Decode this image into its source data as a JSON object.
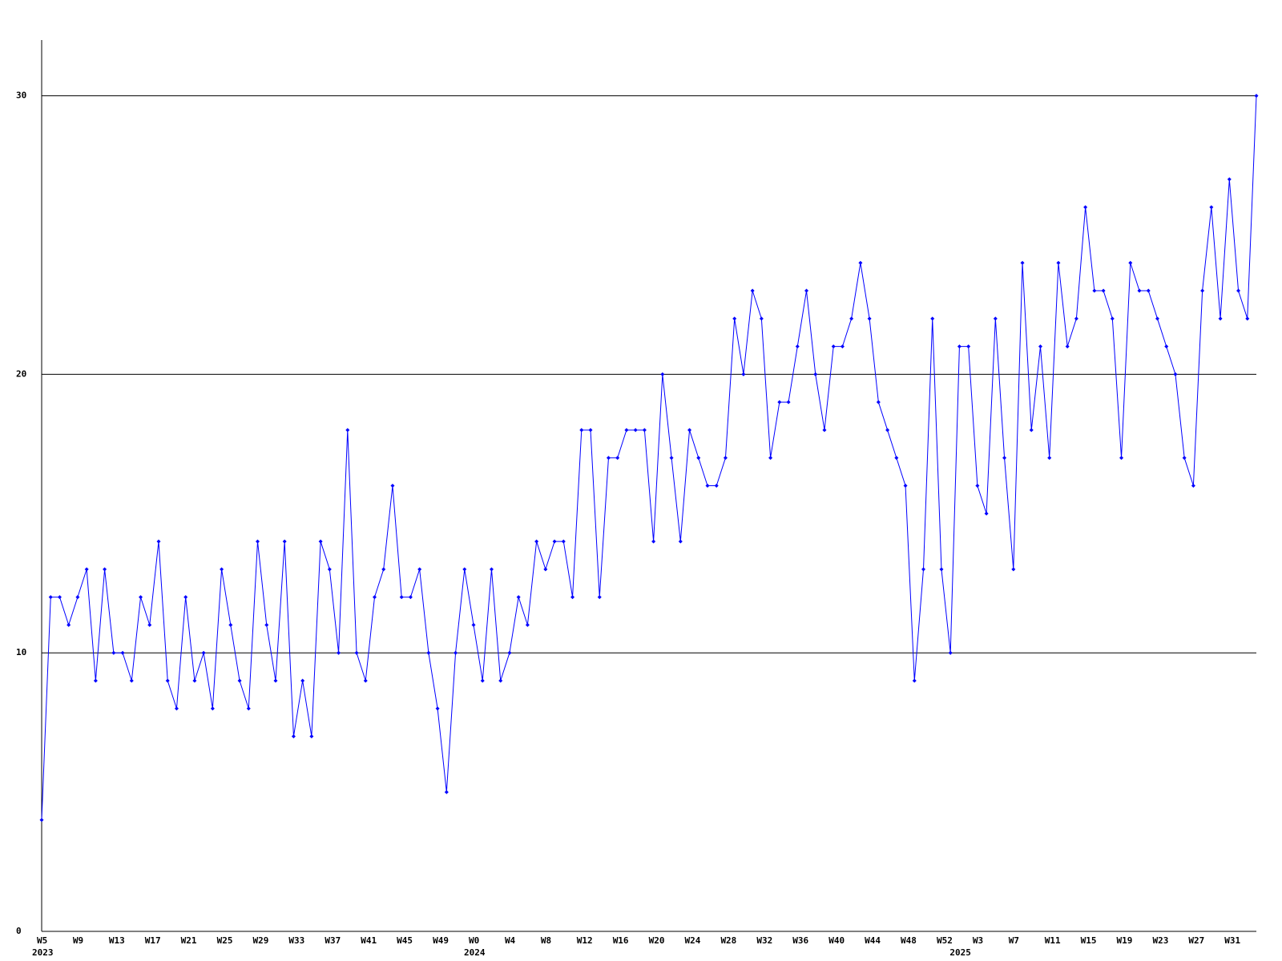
{
  "chart_data": {
    "type": "line",
    "categories": [
      "W5",
      null,
      null,
      null,
      "W9",
      null,
      null,
      null,
      "W13",
      null,
      null,
      null,
      "W17",
      null,
      null,
      null,
      "W21",
      null,
      null,
      null,
      "W25",
      null,
      null,
      null,
      "W29",
      null,
      null,
      null,
      "W33",
      null,
      null,
      null,
      "W37",
      null,
      null,
      null,
      "W41",
      null,
      null,
      null,
      "W45",
      null,
      null,
      null,
      "W49",
      null,
      null,
      null,
      "W0",
      null,
      null,
      null,
      "W4",
      null,
      null,
      null,
      "W8",
      null,
      null,
      null,
      "W12",
      null,
      null,
      null,
      "W16",
      null,
      null,
      null,
      "W20",
      null,
      null,
      null,
      "W24",
      null,
      null,
      null,
      "W28",
      null,
      null,
      null,
      "W32",
      null,
      null,
      null,
      "W36",
      null,
      null,
      null,
      "W40",
      null,
      null,
      null,
      "W44",
      null,
      null,
      null,
      "W48",
      null,
      null,
      null,
      "W52",
      null,
      null,
      null,
      "W3",
      null,
      null,
      null,
      "W7",
      null,
      null,
      null,
      "W11",
      null,
      null,
      null,
      "W15",
      null,
      null,
      null,
      "W19",
      null,
      null,
      null,
      "W23",
      null,
      null,
      null,
      "W27",
      null,
      null,
      null,
      "W31",
      null,
      null,
      null
    ],
    "category_years": [
      "2023",
      null,
      null,
      null,
      null,
      null,
      null,
      null,
      null,
      null,
      null,
      null,
      null,
      null,
      null,
      null,
      null,
      null,
      null,
      null,
      null,
      null,
      null,
      null,
      null,
      null,
      null,
      null,
      null,
      null,
      null,
      null,
      null,
      null,
      null,
      null,
      null,
      null,
      null,
      null,
      null,
      null,
      null,
      null,
      null,
      null,
      null,
      null,
      "2024",
      null,
      null,
      null,
      null,
      null,
      null,
      null,
      null,
      null,
      null,
      null,
      null,
      null,
      null,
      null,
      null,
      null,
      null,
      null,
      null,
      null,
      null,
      null,
      null,
      null,
      null,
      null,
      null,
      null,
      null,
      null,
      null,
      null,
      null,
      null,
      null,
      null,
      null,
      null,
      null,
      null,
      null,
      null,
      null,
      null,
      null,
      null,
      null,
      null,
      null,
      null,
      null,
      null,
      "2025",
      null,
      null,
      null,
      null,
      null,
      null,
      null,
      null,
      null,
      null,
      null,
      null,
      null,
      null,
      null,
      null,
      null,
      null,
      null,
      null,
      null,
      null,
      null,
      null,
      null,
      null,
      null,
      null,
      null,
      null,
      null
    ],
    "values": [
      4,
      12,
      12,
      11,
      12,
      13,
      9,
      13,
      10,
      10,
      9,
      12,
      11,
      14,
      9,
      8,
      12,
      9,
      10,
      8,
      13,
      11,
      9,
      8,
      14,
      11,
      9,
      14,
      7,
      9,
      7,
      14,
      13,
      10,
      18,
      10,
      9,
      12,
      13,
      16,
      12,
      12,
      13,
      10,
      8,
      5,
      10,
      13,
      11,
      9,
      13,
      9,
      10,
      12,
      11,
      14,
      13,
      14,
      14,
      12,
      18,
      18,
      12,
      17,
      17,
      18,
      18,
      18,
      14,
      20,
      17,
      14,
      18,
      17,
      16,
      16,
      17,
      22,
      20,
      23,
      22,
      17,
      19,
      19,
      21,
      23,
      20,
      18,
      21,
      21,
      22,
      24,
      22,
      19,
      18,
      17,
      16,
      9,
      13,
      22,
      13,
      10,
      21,
      21,
      16,
      15,
      22,
      17,
      13,
      24,
      18,
      21,
      17,
      24,
      21,
      22,
      26,
      23,
      23,
      22,
      17,
      24,
      23,
      23,
      22,
      21,
      20,
      17,
      16,
      23,
      26,
      22,
      27,
      23,
      22,
      30
    ],
    "color": "#0000ff",
    "ylim": [
      0,
      32
    ],
    "yticks": [
      0,
      10,
      20,
      30
    ],
    "grid": true
  }
}
